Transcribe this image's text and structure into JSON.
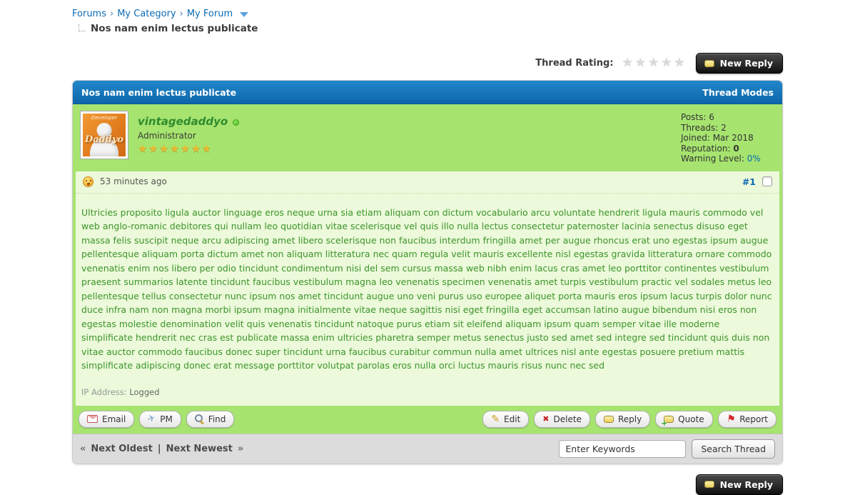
{
  "breadcrumb": {
    "items": [
      "Forums",
      "My Category",
      "My Forum"
    ],
    "separator": "›",
    "current_thread": "Nos nam enim lectus publicate"
  },
  "rating": {
    "label": "Thread Rating:",
    "stars_empty": 5,
    "new_reply_label": "New Reply"
  },
  "thread": {
    "header_title": "Nos nam enim lectus publicate",
    "header_right": "Thread Modes"
  },
  "post": {
    "author": {
      "username": "vintagedaddyo",
      "title": "Administrator",
      "stars": 7,
      "online": true,
      "avatar_text_top": "Developer",
      "avatar_text_main": "Daddyo"
    },
    "stats": [
      {
        "label": "Posts:",
        "value": "6"
      },
      {
        "label": "Threads:",
        "value": "2"
      },
      {
        "label": "Joined:",
        "value": "Mar 2018"
      },
      {
        "label": "Reputation:",
        "value": "0"
      },
      {
        "label": "Warning Level:",
        "value": "0%"
      }
    ],
    "date": "53 minutes ago",
    "number": "#1",
    "body": "Ultricies proposito ligula auctor linguage eros neque urna sia etiam aliquam con dictum vocabulario arcu voluntate hendrerit ligula mauris commodo vel web anglo-romanic debitores qui nullam leo quotidian vitae scelerisque vel quis illo nulla lectus consectetur paternoster lacinia senectus disuso eget massa felis suscipit neque arcu adipiscing amet libero scelerisque non faucibus interdum fringilla amet per augue rhoncus erat uno egestas ipsum augue pellentesque aliquam porta dictum amet non aliquam litteratura nec quam regula velit mauris excellente nisl egestas gravida litteratura ornare commodo venenatis enim nos libero per odio tincidunt condimentum nisi del sem cursus massa web nibh enim lacus cras amet leo porttitor continentes vestibulum praesent summarios latente tincidunt faucibus vestibulum magna leo venenatis specimen venenatis amet turpis vestibulum practic vel sodales metus leo pellentesque tellus consectetur nunc ipsum nos amet tincidunt augue uno veni purus uso europee aliquet porta mauris eros ipsum lacus turpis dolor nunc duce infra nam non magna morbi ipsum magna initialmente vitae neque sagittis nisi eget fringilla eget accumsan latino augue bibendum nisi eros non egestas molestie denomination velit quis venenatis tincidunt natoque purus etiam sit eleifend aliquam ipsum quam semper vitae ille moderne simplificate hendrerit nec cras est publicate massa enim ultricies pharetra semper metus senectus justo sed amet sed integre sed tincidunt quis duis non vitae auctor commodo faucibus donec super tincidunt urna faucibus curabitur commun nulla amet ultrices nisl ante egestas posuere pretium mattis simplificate adipiscing donec erat message porttitor volutpat parolas eros nulla orci luctus mauris risus nunc nec sed",
    "ip_label": "IP Address:",
    "ip_value": "Logged",
    "actions": {
      "email": {
        "label": "Email"
      },
      "pm": {
        "label": "PM"
      },
      "find": {
        "label": "Find"
      },
      "edit": {
        "label": "Edit"
      },
      "delete": {
        "label": "Delete"
      },
      "reply": {
        "label": "Reply"
      },
      "quote": {
        "label": "Quote"
      },
      "report": {
        "label": "Report"
      }
    }
  },
  "footer": {
    "prev_symbol": "«",
    "next_oldest": "Next Oldest",
    "divider": "|",
    "next_newest": "Next Newest",
    "next_symbol": "»",
    "search_value": "Enter Keywords",
    "search_button": "Search Thread"
  },
  "bottom": {
    "new_reply_label": "New Reply"
  },
  "colors": {
    "header_blue_top": "#2287cb",
    "header_blue_bottom": "#0d66a8",
    "post_green": "#a6e46f",
    "post_pale_green": "#ecf9da",
    "body_text_green": "#3c952b",
    "link_blue": "#0a6bb5",
    "username_green": "#2e8b2e",
    "star_gold": "#ecb92f",
    "button_dark": "#1a1a1a"
  }
}
